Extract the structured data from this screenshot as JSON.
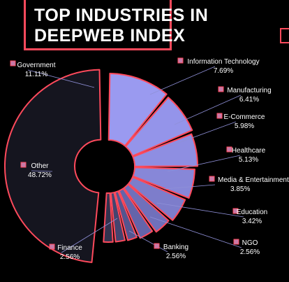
{
  "chart_data": {
    "type": "pie",
    "variant": "donut",
    "title_lines": [
      "TOP INDUSTRIES IN",
      "DEEPWEB INDEX"
    ],
    "slices": [
      {
        "label": "Government",
        "value": 11.11,
        "display": "11.11%",
        "color": "#9a9af0"
      },
      {
        "label": "Information Technology",
        "value": 7.69,
        "display": "7.69%",
        "color": "#9494ea"
      },
      {
        "label": "Manufacturing",
        "value": 6.41,
        "display": "6.41%",
        "color": "#8e8ee2"
      },
      {
        "label": "E-Commerce",
        "value": 5.98,
        "display": "5.98%",
        "color": "#8787d8"
      },
      {
        "label": "Healthcare",
        "value": 5.13,
        "display": "5.13%",
        "color": "#7d7dcb"
      },
      {
        "label": "Media & Entertainment",
        "value": 3.85,
        "display": "3.85%",
        "color": "#7070bb"
      },
      {
        "label": "Education",
        "value": 3.42,
        "display": "3.42%",
        "color": "#6464aa"
      },
      {
        "label": "NGO",
        "value": 2.56,
        "display": "2.56%",
        "color": "#55558f"
      },
      {
        "label": "Banking",
        "value": 2.56,
        "display": "2.56%",
        "color": "#44446f"
      },
      {
        "label": "Finance",
        "value": 2.56,
        "display": "2.56%",
        "color": "#33334f"
      },
      {
        "label": "Other",
        "value": 48.72,
        "display": "48.72%",
        "color": "#15151f"
      }
    ],
    "colors": {
      "background": "#000000",
      "outline": "#ff4a5c",
      "legend_marker": "#c77aa8",
      "text": "#ffffff"
    }
  }
}
